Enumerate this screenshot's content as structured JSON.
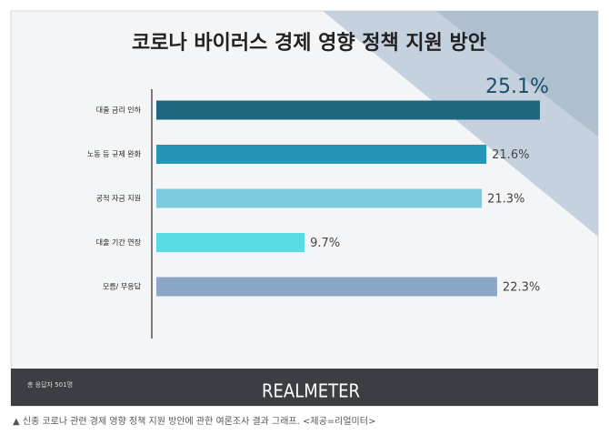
{
  "chart_data": {
    "type": "hbar",
    "title": "코로나 바이러스 경제 영향 정책 지원 방안",
    "categories": [
      "대출 금리 인하",
      "노동 등 규제 완화",
      "공적 자금 지원",
      "대출 기간 연장",
      "모름/ 무응답"
    ],
    "values": [
      25.1,
      21.6,
      21.3,
      9.7,
      22.3
    ],
    "value_labels": [
      "25.1%",
      "21.6%",
      "21.3%",
      "9.7%",
      "22.3%"
    ],
    "colors": [
      "#1b6880",
      "#2596b6",
      "#7dcbe0",
      "#5adbe4",
      "#8ba6c6"
    ]
  },
  "footer": {
    "note": "총 응답자 501명",
    "brand": "REALMETER"
  },
  "caption": "▲ 신종 코로나 관련 경제 영향 정책 지원 방안에 관한 여론조사 결과 그래프. <제공=리얼미터>"
}
